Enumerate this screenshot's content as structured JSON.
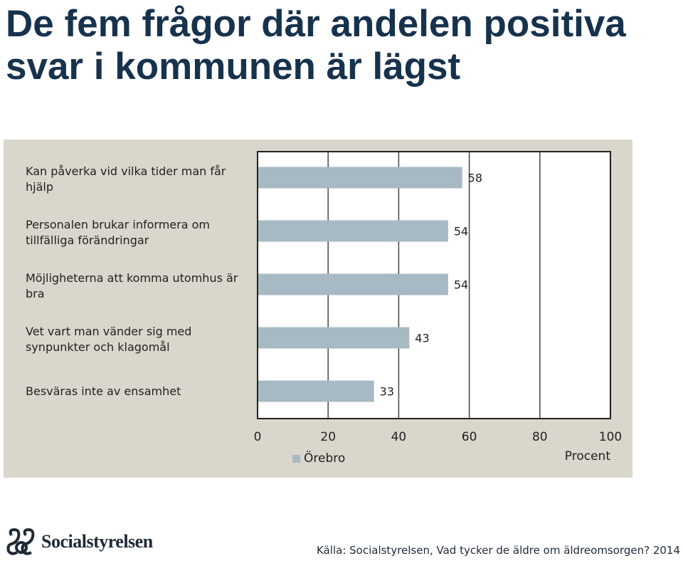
{
  "page": {
    "title_line1": "De fem frågor där andelen positiva",
    "title_line2": "svar i kommunen är lägst",
    "source": "Källa: Socialstyrelsen, Vad tycker de äldre om äldreomsorgen? 2014",
    "logo_text": "Socialstyrelsen"
  },
  "chart_data": {
    "type": "bar",
    "orientation": "horizontal",
    "categories": [
      "Kan påverka vid vilka tider man får hjälp",
      "Personalen brukar informera om tillfälliga förändringar",
      "Möjligheterna att komma utomhus är bra",
      "Vet vart man vänder sig med synpunkter och klagomål",
      "Besväras inte av ensamhet"
    ],
    "series": [
      {
        "name": "Örebro",
        "values": [
          58,
          54,
          54,
          43,
          33
        ],
        "color": "#a7b9c3"
      }
    ],
    "xlim": [
      0,
      100
    ],
    "x_ticks": [
      "0",
      "20",
      "40",
      "60",
      "80",
      "100"
    ],
    "xlabel": "Procent",
    "grid": true,
    "legend": "bottom-left",
    "colors": {
      "background": "#d9d6cb",
      "plot": "#ffffff",
      "bar": "#a7b9c3",
      "title": "#17324d"
    }
  }
}
